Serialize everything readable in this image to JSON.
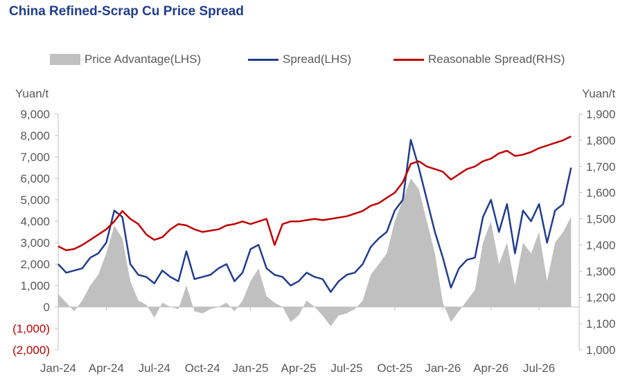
{
  "title": "China Refined-Scrap Cu Price Spread",
  "colors": {
    "area": "#c0c0c0",
    "spread": "#1f3d8f",
    "reasonable": "#c00000",
    "negative_tick": "#c00000",
    "tick": "#595959"
  },
  "chart_data": {
    "type": "line",
    "title": "China Refined-Scrap Cu Price Spread",
    "legend_position": "top",
    "grid": false,
    "x_tick_labels": [
      "Jan-24",
      "Apr-24",
      "Jul-24",
      "Oct-24",
      "Jan-25",
      "Apr-25",
      "Jul-25",
      "Oct-25",
      "Jan-26",
      "Apr-26",
      "Jul-26"
    ],
    "y_left": {
      "label": "Yuan/t",
      "range": [
        -2000,
        9000
      ],
      "tick_labels": [
        "9,000",
        "8,000",
        "7,000",
        "6,000",
        "5,000",
        "4,000",
        "3,000",
        "2,000",
        "1,000",
        "0",
        "(1,000)",
        "(2,000)"
      ]
    },
    "y_right": {
      "label": "Yuan/t",
      "range": [
        1000,
        1900
      ],
      "tick_labels": [
        "1,900",
        "1,800",
        "1,700",
        "1,600",
        "1,500",
        "1,400",
        "1,300",
        "1,200",
        "1,100",
        "1,000"
      ]
    },
    "x_months": [
      0,
      0.5,
      1,
      1.5,
      2,
      2.5,
      3,
      3.5,
      4,
      4.5,
      5,
      5.5,
      6,
      6.5,
      7,
      7.5,
      8,
      8.5,
      9,
      9.5,
      10,
      10.5,
      11,
      11.5,
      12,
      12.5,
      13,
      13.5,
      14,
      14.5,
      15,
      15.5,
      16,
      16.5,
      17,
      17.5,
      18,
      18.5,
      19,
      19.5,
      20,
      20.5,
      21,
      21.5,
      22,
      22.5,
      23,
      23.5,
      24,
      24.5,
      25,
      25.5,
      26,
      26.5,
      27,
      27.5,
      28,
      28.5,
      29,
      29.5,
      30,
      30.5,
      31,
      31.5,
      32
    ],
    "series": [
      {
        "name": "Price Advantage(LHS)",
        "axis": "left",
        "kind": "area",
        "values": [
          600,
          200,
          -200,
          300,
          1000,
          1500,
          2500,
          3800,
          3200,
          1200,
          300,
          100,
          -500,
          200,
          0,
          -100,
          1000,
          -200,
          -300,
          -100,
          0,
          200,
          -200,
          300,
          1200,
          1800,
          500,
          200,
          0,
          -700,
          -400,
          300,
          0,
          -400,
          -900,
          -400,
          -300,
          -100,
          300,
          1500,
          2000,
          2500,
          4000,
          5000,
          6000,
          5500,
          4000,
          2500,
          200,
          -700,
          -200,
          300,
          800,
          3000,
          4000,
          2000,
          3000,
          1000,
          3000,
          2500,
          3500,
          1200,
          3000,
          3500,
          4200
        ]
      },
      {
        "name": "Spread(LHS)",
        "axis": "left",
        "kind": "line",
        "values": [
          2000,
          1600,
          1700,
          1800,
          2300,
          2500,
          3000,
          4500,
          4200,
          2000,
          1500,
          1400,
          1100,
          1700,
          1400,
          1200,
          2600,
          1300,
          1400,
          1500,
          1800,
          2000,
          1200,
          1600,
          2700,
          2900,
          1800,
          1500,
          1400,
          1000,
          1200,
          1600,
          1400,
          1300,
          700,
          1200,
          1500,
          1600,
          2000,
          2800,
          3200,
          3500,
          4500,
          5000,
          7800,
          6500,
          5000,
          3500,
          2300,
          900,
          1800,
          2200,
          2300,
          4200,
          5000,
          3500,
          4800,
          2500,
          4500,
          4000,
          4800,
          3000,
          4500,
          4800,
          6500
        ]
      },
      {
        "name": "Reasonable Spread(RHS)",
        "axis": "right",
        "kind": "line",
        "values": [
          1395,
          1380,
          1385,
          1400,
          1420,
          1440,
          1460,
          1490,
          1530,
          1500,
          1480,
          1440,
          1420,
          1430,
          1460,
          1480,
          1475,
          1460,
          1450,
          1455,
          1460,
          1475,
          1480,
          1490,
          1480,
          1490,
          1500,
          1400,
          1480,
          1490,
          1490,
          1495,
          1500,
          1495,
          1500,
          1505,
          1510,
          1520,
          1530,
          1550,
          1560,
          1580,
          1600,
          1640,
          1710,
          1720,
          1700,
          1690,
          1680,
          1650,
          1670,
          1690,
          1700,
          1720,
          1730,
          1750,
          1760,
          1740,
          1745,
          1755,
          1770,
          1780,
          1790,
          1800,
          1815
        ]
      }
    ]
  },
  "legend": {
    "area_label": "Price Advantage(LHS)",
    "spread_label": "Spread(LHS)",
    "reasonable_label": "Reasonable Spread(RHS)"
  }
}
